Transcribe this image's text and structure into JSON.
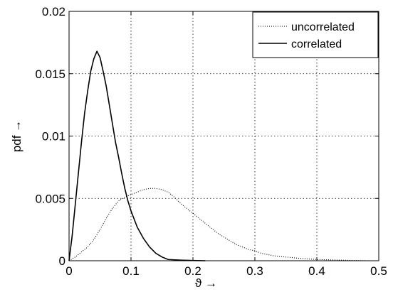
{
  "chart_data": {
    "type": "line",
    "xlabel": "ϑ →",
    "ylabel": "pdf →",
    "xlim": [
      0,
      0.5
    ],
    "ylim": [
      0,
      0.02
    ],
    "x_ticks": [
      0,
      0.1,
      0.2,
      0.3,
      0.4,
      0.5
    ],
    "x_tick_labels": [
      "0",
      "0.1",
      "0.2",
      "0.3",
      "0.4",
      "0.5"
    ],
    "y_ticks": [
      0,
      0.005,
      0.01,
      0.015,
      0.02
    ],
    "y_tick_labels": [
      "0",
      "0.005",
      "0.01",
      "0.015",
      "0.02"
    ],
    "grid": true,
    "legend_position": "top-right",
    "series": [
      {
        "name": "uncorrelated",
        "style": "dotted",
        "color": "#000000",
        "points": [
          [
            0,
            0
          ],
          [
            0.01,
            0.0003
          ],
          [
            0.02,
            0.0007
          ],
          [
            0.03,
            0.0011
          ],
          [
            0.04,
            0.0017
          ],
          [
            0.05,
            0.0025
          ],
          [
            0.06,
            0.0034
          ],
          [
            0.07,
            0.0042
          ],
          [
            0.08,
            0.0048
          ],
          [
            0.09,
            0.0051
          ],
          [
            0.1,
            0.0053
          ],
          [
            0.11,
            0.0055
          ],
          [
            0.12,
            0.0057
          ],
          [
            0.13,
            0.0058
          ],
          [
            0.14,
            0.0058
          ],
          [
            0.15,
            0.0057
          ],
          [
            0.16,
            0.0055
          ],
          [
            0.17,
            0.0051
          ],
          [
            0.18,
            0.0046
          ],
          [
            0.19,
            0.0042
          ],
          [
            0.2,
            0.0038
          ],
          [
            0.21,
            0.0034
          ],
          [
            0.22,
            0.003
          ],
          [
            0.23,
            0.0026
          ],
          [
            0.24,
            0.0022
          ],
          [
            0.25,
            0.0019
          ],
          [
            0.26,
            0.0016
          ],
          [
            0.27,
            0.0013
          ],
          [
            0.28,
            0.0011
          ],
          [
            0.29,
            0.0009
          ],
          [
            0.3,
            0.0008
          ],
          [
            0.31,
            0.0006
          ],
          [
            0.32,
            0.0005
          ],
          [
            0.33,
            0.0004
          ],
          [
            0.35,
            0.0003
          ],
          [
            0.37,
            0.0002
          ],
          [
            0.4,
            0.0001
          ],
          [
            0.43,
            6e-05
          ],
          [
            0.46,
            2e-05
          ],
          [
            0.48,
            0
          ]
        ]
      },
      {
        "name": "correlated",
        "style": "solid",
        "color": "#000000",
        "points": [
          [
            0,
            0
          ],
          [
            0.005,
            0.002
          ],
          [
            0.01,
            0.0045
          ],
          [
            0.015,
            0.007
          ],
          [
            0.02,
            0.0095
          ],
          [
            0.025,
            0.0118
          ],
          [
            0.03,
            0.0136
          ],
          [
            0.035,
            0.0152
          ],
          [
            0.04,
            0.0162
          ],
          [
            0.045,
            0.0168
          ],
          [
            0.05,
            0.0163
          ],
          [
            0.055,
            0.0152
          ],
          [
            0.06,
            0.014
          ],
          [
            0.065,
            0.0125
          ],
          [
            0.07,
            0.011
          ],
          [
            0.075,
            0.0095
          ],
          [
            0.08,
            0.0083
          ],
          [
            0.085,
            0.007
          ],
          [
            0.09,
            0.0058
          ],
          [
            0.095,
            0.0048
          ],
          [
            0.1,
            0.004
          ],
          [
            0.11,
            0.0027
          ],
          [
            0.12,
            0.0018
          ],
          [
            0.13,
            0.0011
          ],
          [
            0.14,
            0.0006
          ],
          [
            0.15,
            0.0003
          ],
          [
            0.16,
            0.0001
          ],
          [
            0.18,
            5e-05
          ],
          [
            0.2,
            2e-05
          ],
          [
            0.22,
            0
          ]
        ]
      }
    ]
  }
}
